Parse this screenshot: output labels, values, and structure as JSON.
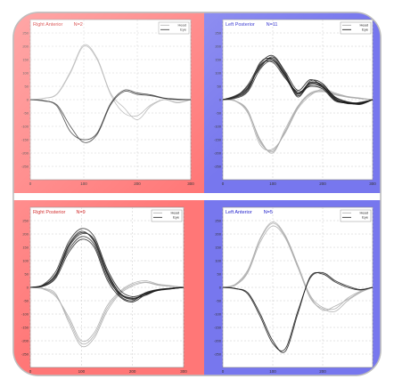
{
  "figure": {
    "colors": {
      "right_side": "#ff7777",
      "left_side": "#7777ee",
      "plot_bg": "#ffffff",
      "grid": "#c8c8c8",
      "head": "#aaaaaa",
      "eye": "#1a1a1a",
      "text_red": "#cc1111",
      "text_blue": "#2222cc"
    }
  },
  "chart_data": [
    {
      "type": "line",
      "title": "Right Anterior",
      "count_label": "N=2",
      "side": "right",
      "legend": [
        "Head",
        "Eye"
      ],
      "legend_position": "top-right",
      "grid": true,
      "xlim": [
        0,
        300
      ],
      "ylim": [
        -300,
        300
      ],
      "xticks": [
        "0",
        "100",
        "200",
        "300"
      ],
      "yticks": [
        "250",
        "200",
        "150",
        "100",
        "50",
        "0",
        "-50",
        "-100",
        "-150",
        "-200",
        "-250"
      ],
      "ylabel": "",
      "series": [
        {
          "role": "head",
          "x": [
            0,
            25,
            50,
            75,
            100,
            125,
            150,
            175,
            200,
            225,
            250,
            275,
            300
          ],
          "y": [
            0,
            5,
            20,
            100,
            200,
            150,
            20,
            -50,
            -60,
            -20,
            0,
            -10,
            0
          ]
        },
        {
          "role": "head",
          "x": [
            0,
            25,
            50,
            75,
            100,
            125,
            150,
            175,
            200,
            225,
            250,
            275,
            300
          ],
          "y": [
            0,
            5,
            22,
            105,
            205,
            155,
            25,
            -30,
            -75,
            -25,
            0,
            -12,
            0
          ]
        },
        {
          "role": "eye",
          "x": [
            0,
            25,
            50,
            75,
            100,
            125,
            150,
            175,
            200,
            225,
            250,
            275,
            300
          ],
          "y": [
            0,
            -5,
            -20,
            -100,
            -160,
            -130,
            -20,
            30,
            20,
            15,
            5,
            0,
            0
          ]
        },
        {
          "role": "eye",
          "x": [
            0,
            25,
            50,
            75,
            100,
            125,
            150,
            175,
            200,
            225,
            250,
            275,
            300
          ],
          "y": [
            0,
            -3,
            -25,
            -120,
            -150,
            -125,
            -15,
            35,
            25,
            18,
            6,
            2,
            0
          ]
        }
      ]
    },
    {
      "type": "line",
      "title": "Left Posterior",
      "count_label": "N=11",
      "side": "left",
      "legend": [
        "Head",
        "Eye"
      ],
      "legend_position": "top-right",
      "grid": true,
      "xlim": [
        0,
        300
      ],
      "ylim": [
        -300,
        300
      ],
      "xticks": [
        "0",
        "100",
        "200",
        "300"
      ],
      "yticks": [
        "250",
        "200",
        "150",
        "100",
        "50",
        "0",
        "-50",
        "-100",
        "-150",
        "-200",
        "-250"
      ],
      "ylabel": "",
      "series": [
        {
          "role": "head",
          "x": [
            0,
            25,
            50,
            75,
            100,
            125,
            150,
            175,
            200,
            225,
            250,
            275,
            300
          ],
          "y": [
            0,
            -5,
            -40,
            -160,
            -190,
            -120,
            -30,
            20,
            30,
            20,
            10,
            5,
            0
          ]
        },
        {
          "role": "head",
          "x": [
            0,
            25,
            50,
            75,
            100,
            125,
            150,
            175,
            200,
            225,
            250,
            275,
            300
          ],
          "y": [
            0,
            -4,
            -45,
            -150,
            -200,
            -110,
            -25,
            25,
            35,
            22,
            10,
            4,
            0
          ]
        },
        {
          "role": "head",
          "x": [
            0,
            25,
            50,
            75,
            100,
            125,
            150,
            175,
            200,
            225,
            250,
            275,
            300
          ],
          "y": [
            0,
            -6,
            -50,
            -170,
            -185,
            -125,
            -35,
            15,
            40,
            25,
            12,
            6,
            0
          ]
        },
        {
          "role": "head",
          "x": [
            0,
            25,
            50,
            75,
            100,
            125,
            150,
            175,
            200,
            225,
            250,
            275,
            300
          ],
          "y": [
            0,
            -5,
            -42,
            -155,
            -195,
            -118,
            -28,
            22,
            32,
            18,
            9,
            4,
            0
          ]
        },
        {
          "role": "eye",
          "x": [
            0,
            25,
            50,
            75,
            100,
            125,
            150,
            175,
            200,
            225,
            250,
            275,
            300
          ],
          "y": [
            0,
            10,
            40,
            140,
            150,
            90,
            20,
            60,
            50,
            0,
            -10,
            -15,
            0
          ]
        },
        {
          "role": "eye",
          "x": [
            0,
            25,
            50,
            75,
            100,
            125,
            150,
            175,
            200,
            225,
            250,
            275,
            300
          ],
          "y": [
            0,
            12,
            50,
            120,
            160,
            100,
            10,
            70,
            60,
            5,
            -15,
            -10,
            0
          ]
        },
        {
          "role": "eye",
          "x": [
            0,
            25,
            50,
            75,
            100,
            125,
            150,
            175,
            200,
            225,
            250,
            275,
            300
          ],
          "y": [
            0,
            8,
            35,
            130,
            140,
            80,
            30,
            50,
            40,
            -5,
            -12,
            -18,
            0
          ]
        },
        {
          "role": "eye",
          "x": [
            0,
            25,
            50,
            75,
            100,
            125,
            150,
            175,
            200,
            225,
            250,
            275,
            300
          ],
          "y": [
            0,
            15,
            45,
            125,
            155,
            95,
            25,
            65,
            55,
            10,
            -8,
            -12,
            0
          ]
        },
        {
          "role": "eye",
          "x": [
            0,
            25,
            50,
            75,
            100,
            125,
            150,
            175,
            200,
            225,
            250,
            275,
            300
          ],
          "y": [
            0,
            5,
            30,
            115,
            145,
            85,
            15,
            55,
            45,
            -2,
            -14,
            -16,
            0
          ]
        },
        {
          "role": "eye",
          "x": [
            0,
            25,
            50,
            75,
            100,
            125,
            150,
            175,
            200,
            225,
            250,
            275,
            300
          ],
          "y": [
            0,
            10,
            55,
            135,
            165,
            105,
            35,
            75,
            50,
            8,
            -10,
            -14,
            0
          ]
        },
        {
          "role": "eye",
          "x": [
            0,
            25,
            50,
            75,
            100,
            125,
            150,
            175,
            200,
            225,
            250,
            275,
            300
          ],
          "y": [
            0,
            12,
            42,
            128,
            150,
            92,
            22,
            62,
            48,
            3,
            -11,
            -13,
            0
          ]
        }
      ]
    },
    {
      "type": "line",
      "title": "Right Posterior",
      "count_label": "N=9",
      "side": "right",
      "legend": [
        "Head",
        "Eye"
      ],
      "legend_position": "top-right",
      "grid": true,
      "xlim": [
        0,
        300
      ],
      "ylim": [
        -300,
        300
      ],
      "xticks": [
        "0",
        "100",
        "200",
        "300"
      ],
      "yticks": [
        "250",
        "200",
        "150",
        "100",
        "50",
        "0",
        "-50",
        "-100",
        "-150",
        "-200",
        "-250"
      ],
      "ylabel": "",
      "series": [
        {
          "role": "head",
          "x": [
            0,
            25,
            50,
            75,
            100,
            125,
            150,
            175,
            200,
            225,
            250,
            275,
            300
          ],
          "y": [
            0,
            -5,
            -30,
            -120,
            -210,
            -180,
            -80,
            -20,
            10,
            20,
            10,
            5,
            0
          ]
        },
        {
          "role": "head",
          "x": [
            0,
            25,
            50,
            75,
            100,
            125,
            150,
            175,
            200,
            225,
            250,
            275,
            300
          ],
          "y": [
            0,
            -6,
            -35,
            -110,
            -200,
            -170,
            -70,
            -15,
            15,
            25,
            12,
            6,
            0
          ]
        },
        {
          "role": "head",
          "x": [
            0,
            25,
            50,
            75,
            100,
            125,
            150,
            175,
            200,
            225,
            250,
            275,
            300
          ],
          "y": [
            0,
            -4,
            -25,
            -130,
            -220,
            -190,
            -90,
            -25,
            5,
            18,
            8,
            4,
            0
          ]
        },
        {
          "role": "eye",
          "x": [
            0,
            25,
            50,
            75,
            100,
            125,
            150,
            175,
            200,
            225,
            250,
            275,
            300
          ],
          "y": [
            0,
            5,
            40,
            150,
            200,
            180,
            60,
            -20,
            -40,
            -30,
            -10,
            -5,
            0
          ]
        },
        {
          "role": "eye",
          "x": [
            0,
            25,
            50,
            75,
            100,
            125,
            150,
            175,
            200,
            225,
            250,
            275,
            300
          ],
          "y": [
            0,
            8,
            50,
            160,
            210,
            170,
            50,
            -30,
            -50,
            -20,
            -8,
            -4,
            0
          ]
        },
        {
          "role": "eye",
          "x": [
            0,
            25,
            50,
            75,
            100,
            125,
            150,
            175,
            200,
            225,
            250,
            275,
            300
          ],
          "y": [
            0,
            6,
            45,
            140,
            190,
            160,
            40,
            -25,
            -45,
            -25,
            -12,
            -6,
            0
          ]
        },
        {
          "role": "eye",
          "x": [
            0,
            25,
            50,
            75,
            100,
            125,
            150,
            175,
            200,
            225,
            250,
            275,
            300
          ],
          "y": [
            0,
            10,
            60,
            170,
            220,
            190,
            70,
            -10,
            -35,
            -22,
            -9,
            -3,
            0
          ]
        },
        {
          "role": "eye",
          "x": [
            0,
            25,
            50,
            75,
            100,
            125,
            150,
            175,
            200,
            225,
            250,
            275,
            300
          ],
          "y": [
            0,
            4,
            35,
            130,
            180,
            150,
            30,
            -35,
            -55,
            -28,
            -11,
            -5,
            0
          ]
        },
        {
          "role": "eye",
          "x": [
            0,
            25,
            50,
            75,
            100,
            125,
            150,
            175,
            200,
            225,
            250,
            275,
            300
          ],
          "y": [
            0,
            7,
            48,
            155,
            205,
            175,
            55,
            -22,
            -42,
            -24,
            -10,
            -4,
            0
          ]
        }
      ]
    },
    {
      "type": "line",
      "title": "Left Anterior",
      "count_label": "N=5",
      "side": "left",
      "legend": [
        "Head",
        "Eye"
      ],
      "legend_position": "top-right",
      "grid": true,
      "xlim": [
        0,
        300
      ],
      "ylim": [
        -300,
        300
      ],
      "xticks": [
        "0",
        "100",
        "200",
        "300"
      ],
      "yticks": [
        "250",
        "200",
        "150",
        "100",
        "50",
        "0",
        "-50",
        "-100",
        "-150",
        "-200",
        "-250"
      ],
      "ylabel": "",
      "series": [
        {
          "role": "head",
          "x": [
            0,
            25,
            50,
            75,
            100,
            125,
            150,
            175,
            200,
            225,
            250,
            275,
            300
          ],
          "y": [
            0,
            10,
            60,
            180,
            240,
            190,
            80,
            -40,
            -80,
            -90,
            -50,
            -20,
            0
          ]
        },
        {
          "role": "head",
          "x": [
            0,
            25,
            50,
            75,
            100,
            125,
            150,
            175,
            200,
            225,
            250,
            275,
            300
          ],
          "y": [
            0,
            8,
            55,
            170,
            230,
            185,
            75,
            -35,
            -85,
            -70,
            -45,
            -18,
            0
          ]
        },
        {
          "role": "head",
          "x": [
            0,
            25,
            50,
            75,
            100,
            125,
            150,
            175,
            200,
            225,
            250,
            275,
            300
          ],
          "y": [
            0,
            12,
            65,
            185,
            245,
            195,
            85,
            -30,
            -75,
            -80,
            -40,
            -15,
            0
          ]
        },
        {
          "role": "eye",
          "x": [
            0,
            25,
            50,
            75,
            100,
            125,
            150,
            175,
            200,
            225,
            250,
            275,
            300
          ],
          "y": [
            0,
            -5,
            -20,
            -100,
            -200,
            -240,
            -100,
            40,
            50,
            20,
            0,
            -10,
            0
          ]
        },
        {
          "role": "eye",
          "x": [
            0,
            25,
            50,
            75,
            100,
            125,
            150,
            175,
            200,
            225,
            250,
            275,
            300
          ],
          "y": [
            0,
            -4,
            -25,
            -110,
            -210,
            -230,
            -90,
            35,
            55,
            25,
            5,
            -8,
            0
          ]
        }
      ]
    }
  ]
}
